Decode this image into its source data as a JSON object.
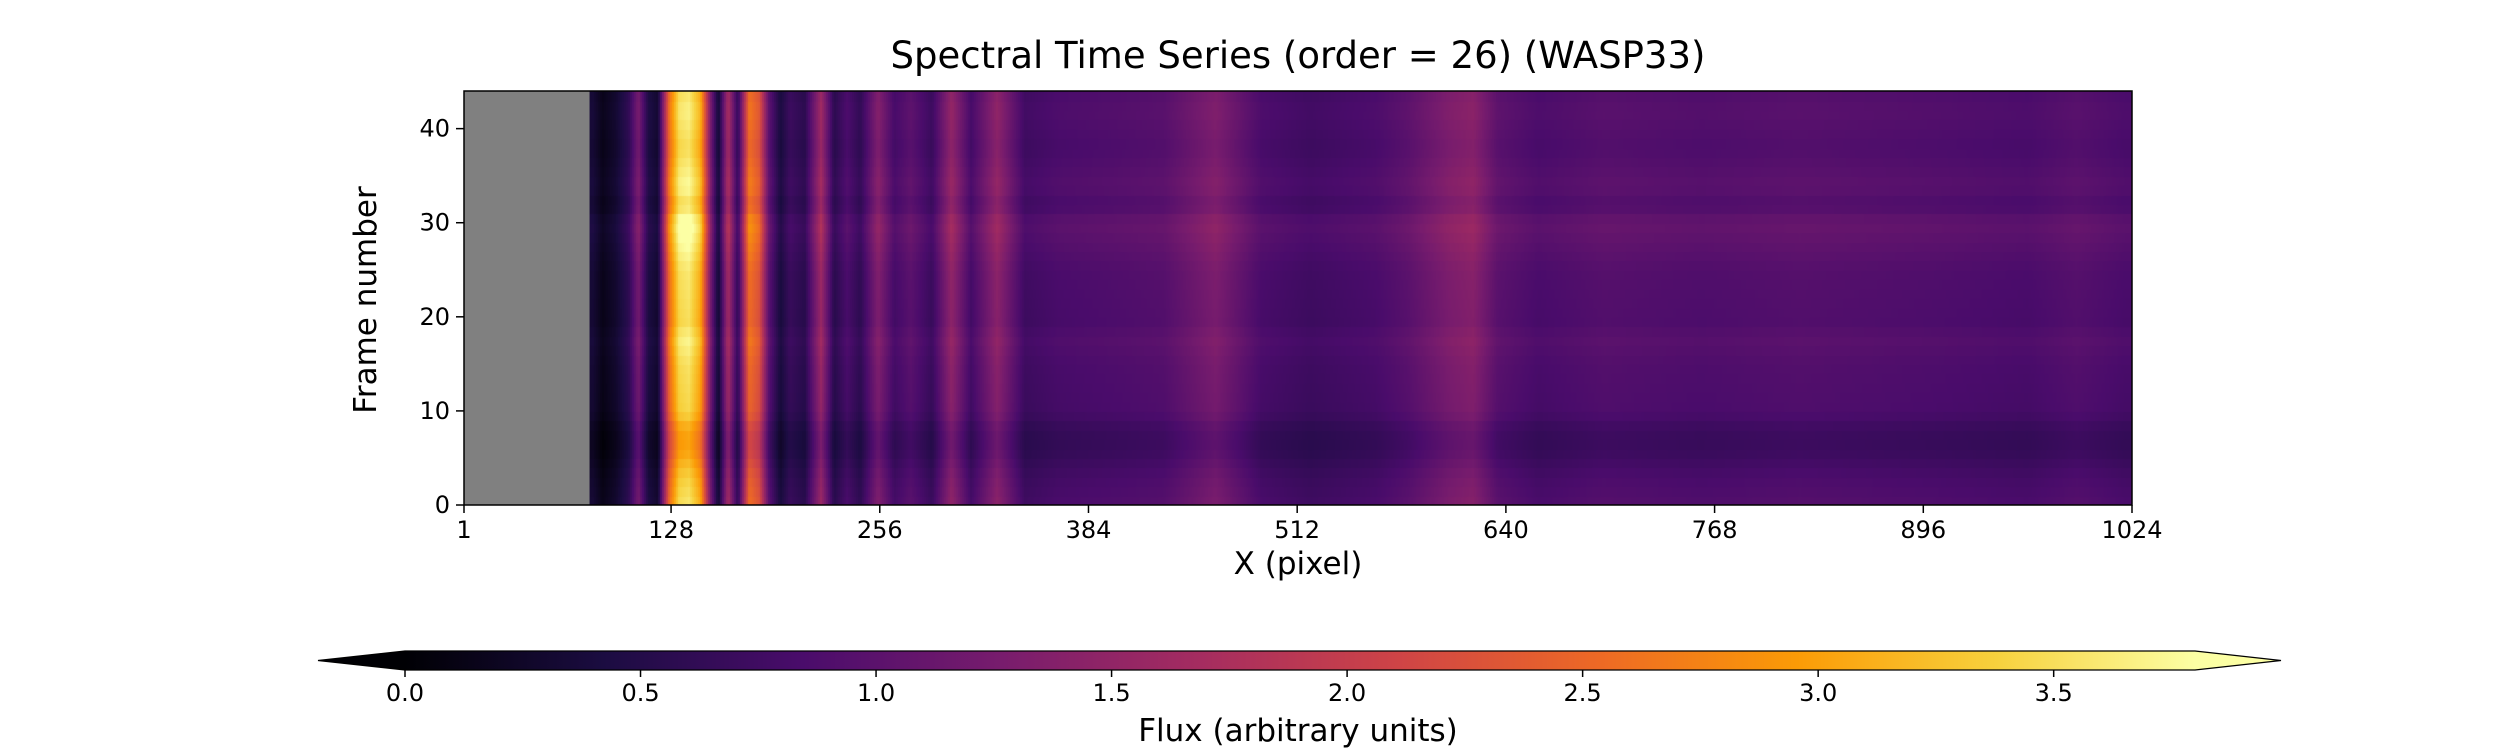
{
  "chart_data": {
    "type": "heatmap",
    "title": "Spectral Time Series (order = 26) (WASP33)",
    "xlabel": "X (pixel)",
    "ylabel": "Frame number",
    "xlim": [
      1,
      1024
    ],
    "ylim": [
      0,
      44
    ],
    "x_ticks": [
      "1",
      "128",
      "256",
      "384",
      "512",
      "640",
      "768",
      "896",
      "1024"
    ],
    "x_tick_values": [
      1,
      128,
      256,
      384,
      512,
      640,
      768,
      896,
      1024
    ],
    "y_ticks": [
      "0",
      "10",
      "20",
      "30",
      "40"
    ],
    "y_tick_values": [
      0,
      10,
      20,
      30,
      40
    ],
    "masked_region_x": [
      1,
      78
    ],
    "masked_color": "#808080",
    "colormap": "inferno",
    "colormap_stops": [
      "#000004",
      "#1b0c41",
      "#4a0c6b",
      "#781c6d",
      "#a52c60",
      "#cf4446",
      "#ed6925",
      "#fb9b06",
      "#f7d13d",
      "#fcffa4"
    ],
    "colorbar": {
      "label": "Flux (arbitrary units)",
      "range": [
        0.0,
        3.8
      ],
      "extend": "both",
      "ticks": [
        "0.0",
        "0.5",
        "1.0",
        "1.5",
        "2.0",
        "2.5",
        "3.0",
        "3.5"
      ],
      "tick_values": [
        0.0,
        0.5,
        1.0,
        1.5,
        2.0,
        2.5,
        3.0,
        3.5
      ]
    },
    "baseline_flux": 0.95,
    "column_features": [
      {
        "x": 80,
        "flux": 0.35
      },
      {
        "x": 86,
        "flux": 0.15
      },
      {
        "x": 94,
        "flux": 0.3
      },
      {
        "x": 102,
        "flux": 0.6
      },
      {
        "x": 108,
        "flux": 1.25
      },
      {
        "x": 114,
        "flux": 0.45
      },
      {
        "x": 120,
        "flux": 0.3
      },
      {
        "x": 127,
        "flux": 2.6
      },
      {
        "x": 133,
        "flux": 3.5
      },
      {
        "x": 139,
        "flux": 3.6
      },
      {
        "x": 146,
        "flux": 3.1
      },
      {
        "x": 152,
        "flux": 1.3
      },
      {
        "x": 157,
        "flux": 0.3
      },
      {
        "x": 163,
        "flux": 1.7
      },
      {
        "x": 169,
        "flux": 0.6
      },
      {
        "x": 176,
        "flux": 2.6
      },
      {
        "x": 182,
        "flux": 2.3
      },
      {
        "x": 188,
        "flux": 1.0
      },
      {
        "x": 195,
        "flux": 0.4
      },
      {
        "x": 201,
        "flux": 0.7
      },
      {
        "x": 210,
        "flux": 0.55
      },
      {
        "x": 220,
        "flux": 1.6
      },
      {
        "x": 228,
        "flux": 0.55
      },
      {
        "x": 236,
        "flux": 0.85
      },
      {
        "x": 244,
        "flux": 0.6
      },
      {
        "x": 255,
        "flux": 1.35
      },
      {
        "x": 265,
        "flux": 0.8
      },
      {
        "x": 275,
        "flux": 1.0
      },
      {
        "x": 288,
        "flux": 0.7
      },
      {
        "x": 300,
        "flux": 1.5
      },
      {
        "x": 312,
        "flux": 0.8
      },
      {
        "x": 328,
        "flux": 1.45
      },
      {
        "x": 345,
        "flux": 0.75
      },
      {
        "x": 365,
        "flux": 0.85
      },
      {
        "x": 400,
        "flux": 0.9
      },
      {
        "x": 430,
        "flux": 0.95
      },
      {
        "x": 462,
        "flux": 1.3
      },
      {
        "x": 490,
        "flux": 0.85
      },
      {
        "x": 520,
        "flux": 0.75
      },
      {
        "x": 560,
        "flux": 0.85
      },
      {
        "x": 580,
        "flux": 1.0
      },
      {
        "x": 605,
        "flux": 1.3
      },
      {
        "x": 620,
        "flux": 1.4
      },
      {
        "x": 635,
        "flux": 1.0
      },
      {
        "x": 660,
        "flux": 0.85
      },
      {
        "x": 700,
        "flux": 0.95
      },
      {
        "x": 760,
        "flux": 0.9
      },
      {
        "x": 820,
        "flux": 0.95
      },
      {
        "x": 900,
        "flux": 0.9
      },
      {
        "x": 960,
        "flux": 0.85
      },
      {
        "x": 990,
        "flux": 0.95
      },
      {
        "x": 1020,
        "flux": 0.85
      }
    ],
    "row_modulation": [
      {
        "frame": 0,
        "factor": 1.0
      },
      {
        "frame": 3,
        "factor": 0.9
      },
      {
        "frame": 6,
        "factor": 0.7
      },
      {
        "frame": 8,
        "factor": 0.72
      },
      {
        "frame": 10,
        "factor": 0.92
      },
      {
        "frame": 15,
        "factor": 0.97
      },
      {
        "frame": 18,
        "factor": 1.08
      },
      {
        "frame": 19,
        "factor": 0.95
      },
      {
        "frame": 25,
        "factor": 1.0
      },
      {
        "frame": 30,
        "factor": 1.22
      },
      {
        "frame": 32,
        "factor": 0.95
      },
      {
        "frame": 34,
        "factor": 1.1
      },
      {
        "frame": 38,
        "factor": 0.95
      },
      {
        "frame": 42,
        "factor": 1.05
      },
      {
        "frame": 44,
        "factor": 0.98
      }
    ]
  }
}
